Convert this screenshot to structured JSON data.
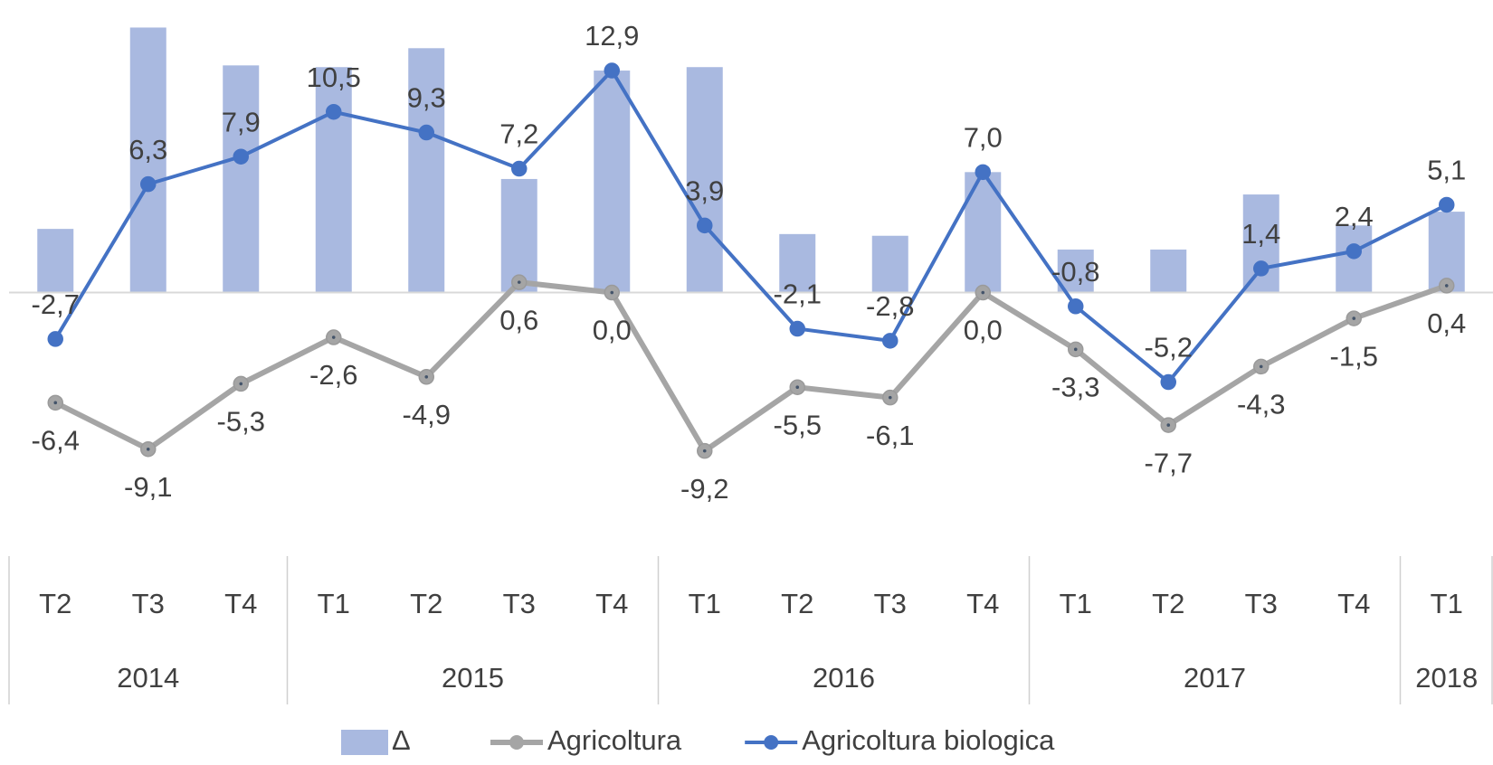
{
  "chart_data": {
    "type": "bar-line",
    "category_groups": [
      {
        "label": "2014",
        "categories": [
          "T2",
          "T3",
          "T4"
        ]
      },
      {
        "label": "2015",
        "categories": [
          "T1",
          "T2",
          "T3",
          "T4"
        ]
      },
      {
        "label": "2016",
        "categories": [
          "T1",
          "T2",
          "T3",
          "T4"
        ]
      },
      {
        "label": "2017",
        "categories": [
          "T1",
          "T2",
          "T3",
          "T4"
        ]
      },
      {
        "label": "2018",
        "categories": [
          "T1"
        ]
      }
    ],
    "ylim": [
      -14,
      17
    ],
    "series": [
      {
        "name": "Δ",
        "type": "bar",
        "color": "#a9b9e0",
        "values": [
          3.7,
          15.4,
          13.2,
          13.1,
          14.2,
          6.6,
          12.9,
          13.1,
          3.4,
          3.3,
          7.0,
          2.5,
          2.5,
          5.7,
          3.9,
          4.7
        ]
      },
      {
        "name": "Agricoltura",
        "type": "line",
        "color": "#a5a5a5",
        "label_side": "below",
        "values": [
          -6.4,
          -9.1,
          -5.3,
          -2.6,
          -4.9,
          0.6,
          0.0,
          -9.2,
          -5.5,
          -6.1,
          0.0,
          -3.3,
          -7.7,
          -4.3,
          -1.5,
          0.4
        ],
        "value_labels": [
          "-6,4",
          "-9,1",
          "-5,3",
          "-2,6",
          "-4,9",
          "0,6",
          "0,0",
          "-9,2",
          "-5,5",
          "-6,1",
          "0,0",
          "-3,3",
          "-7,7",
          "-4,3",
          "-1,5",
          "0,4"
        ]
      },
      {
        "name": "Agricoltura biologica",
        "type": "line",
        "color": "#4472c4",
        "label_side": "above",
        "values": [
          -2.7,
          6.3,
          7.9,
          10.5,
          9.3,
          7.2,
          12.9,
          3.9,
          -2.1,
          -2.8,
          7.0,
          -0.8,
          -5.2,
          1.4,
          2.4,
          5.1
        ],
        "value_labels": [
          "-2,7",
          "6,3",
          "7,9",
          "10,5",
          "9,3",
          "7,2",
          "12,9",
          "3,9",
          "-2,1",
          "-2,8",
          "7,0",
          "-0,8",
          "-5,2",
          "1,4",
          "2,4",
          "5,1"
        ]
      }
    ]
  }
}
